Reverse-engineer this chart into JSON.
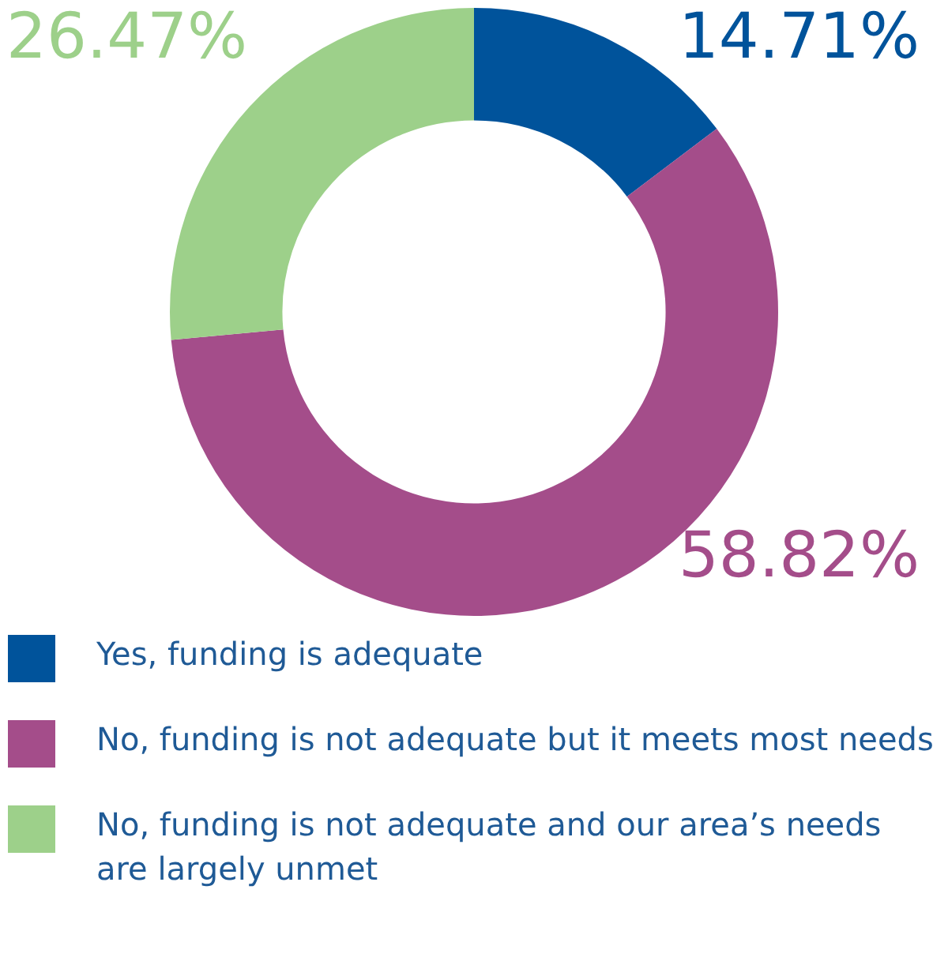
{
  "chart_data": {
    "type": "donut",
    "categories": [
      "Yes, funding is adequate",
      "No, funding is not adequate but it meets most needs",
      "No, funding is not adequate and our area’s needs are largely unmet"
    ],
    "values": [
      14.71,
      58.82,
      26.47
    ],
    "colors": [
      "#00539b",
      "#a44d8a",
      "#9dd08a"
    ],
    "value_labels": [
      "14.71%",
      "58.82%",
      "26.47%"
    ],
    "legend": "bottom"
  }
}
